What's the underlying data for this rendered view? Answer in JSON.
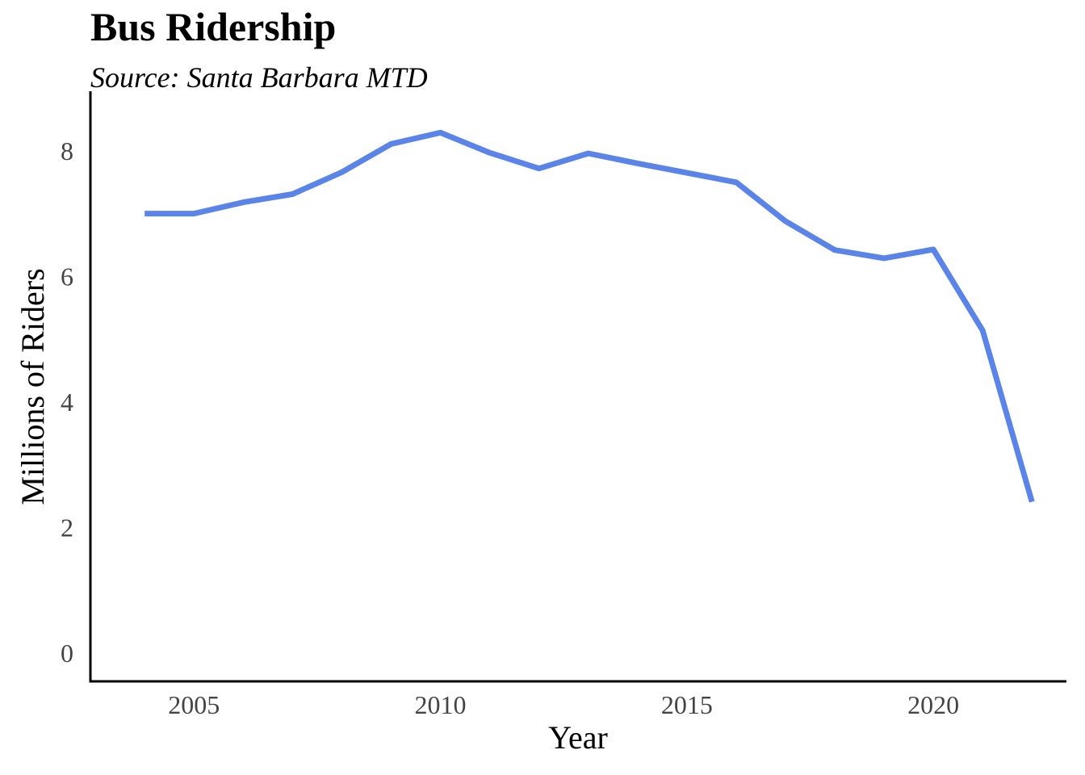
{
  "chart_data": {
    "type": "line",
    "title": "Bus Ridership",
    "subtitle": "Source: Santa Barbara MTD",
    "xlabel": "Year",
    "ylabel": "Millions of Riders",
    "xlim": [
      2002.9,
      2022.7
    ],
    "ylim": [
      -0.45,
      8.95
    ],
    "xticks": [
      2005,
      2010,
      2015,
      2020
    ],
    "yticks": [
      0,
      2,
      4,
      6,
      8
    ],
    "grid": false,
    "line_color": "#5b84e8",
    "series": [
      {
        "x": [
          2004,
          2005,
          2006,
          2007,
          2008,
          2009,
          2010,
          2011,
          2012,
          2013,
          2014,
          2015,
          2016,
          2017,
          2018,
          2019,
          2020,
          2021,
          2022
        ],
        "values": [
          7.0,
          7.0,
          7.18,
          7.31,
          7.66,
          8.11,
          8.29,
          7.97,
          7.72,
          7.96,
          7.8,
          7.65,
          7.5,
          6.88,
          6.42,
          6.29,
          6.43,
          5.14,
          2.41
        ]
      }
    ]
  }
}
